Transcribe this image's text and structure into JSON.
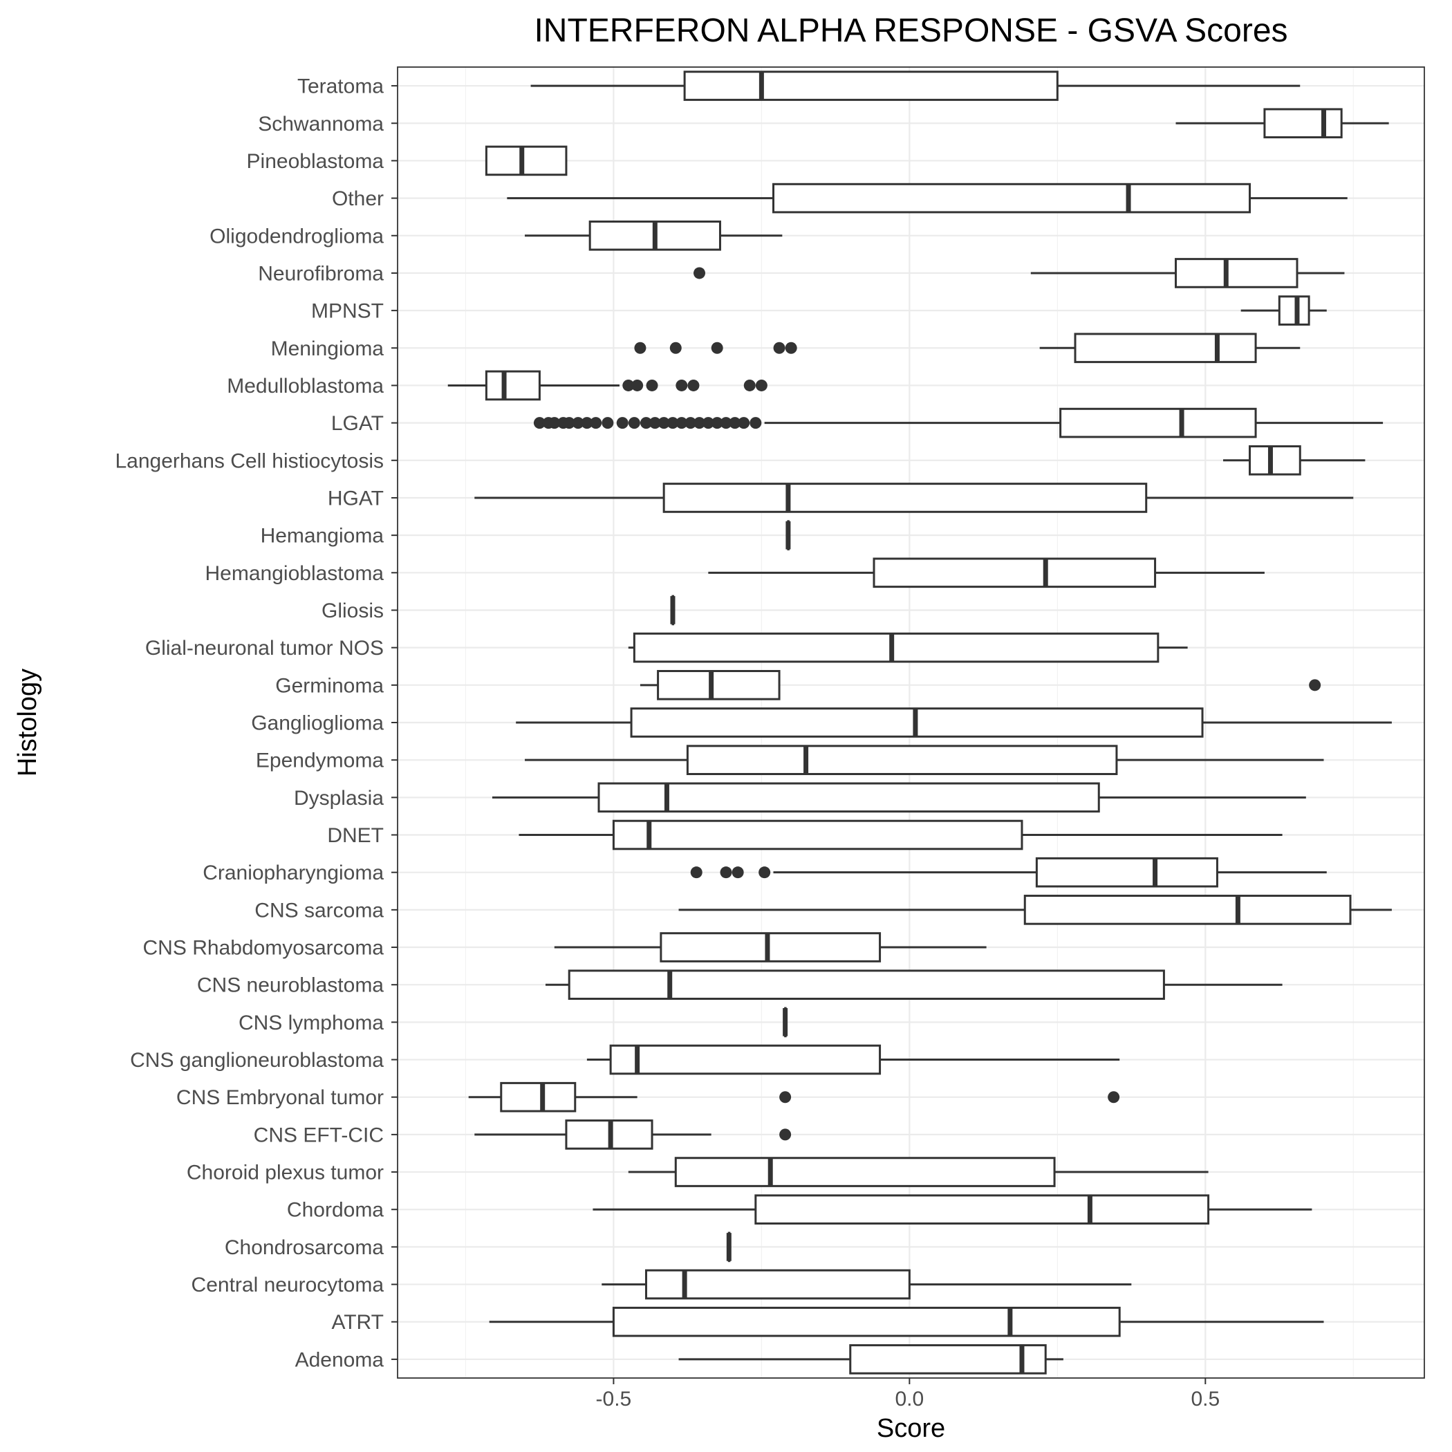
{
  "chart_data": {
    "type": "boxplot",
    "orientation": "horizontal",
    "title": "INTERFERON ALPHA RESPONSE - GSVA Scores",
    "xlabel": "Score",
    "ylabel": "Histology",
    "xlim": [
      -0.865,
      0.87
    ],
    "x_ticks": [
      -0.5,
      0.0,
      0.5
    ],
    "x_tick_labels": [
      "-0.5",
      "0.0",
      "0.5"
    ],
    "grid": true,
    "categories": [
      "Teratoma",
      "Schwannoma",
      "Pineoblastoma",
      "Other",
      "Oligodendroglioma",
      "Neurofibroma",
      "MPNST",
      "Meningioma",
      "Medulloblastoma",
      "LGAT",
      "Langerhans Cell histiocytosis",
      "HGAT",
      "Hemangioma",
      "Hemangioblastoma",
      "Gliosis",
      "Glial-neuronal tumor NOS",
      "Germinoma",
      "Ganglioglioma",
      "Ependymoma",
      "Dysplasia",
      "DNET",
      "Craniopharyngioma",
      "CNS sarcoma",
      "CNS Rhabdomyosarcoma",
      "CNS neuroblastoma",
      "CNS lymphoma",
      "CNS ganglioneuroblastoma",
      "CNS Embryonal tumor",
      "CNS EFT-CIC",
      "Choroid plexus tumor",
      "Chordoma",
      "Chondrosarcoma",
      "Central neurocytoma",
      "ATRT",
      "Adenoma"
    ],
    "boxes": [
      {
        "category": "Teratoma",
        "whisker_low": -0.64,
        "q1": -0.38,
        "median": -0.25,
        "q3": 0.25,
        "whisker_high": 0.66,
        "outliers": []
      },
      {
        "category": "Schwannoma",
        "whisker_low": 0.45,
        "q1": 0.6,
        "median": 0.7,
        "q3": 0.73,
        "whisker_high": 0.81,
        "outliers": []
      },
      {
        "category": "Pineoblastoma",
        "whisker_low": -0.715,
        "q1": -0.715,
        "median": -0.655,
        "q3": -0.58,
        "whisker_high": -0.58,
        "outliers": []
      },
      {
        "category": "Other",
        "whisker_low": -0.68,
        "q1": -0.23,
        "median": 0.37,
        "q3": 0.575,
        "whisker_high": 0.74,
        "outliers": []
      },
      {
        "category": "Oligodendroglioma",
        "whisker_low": -0.65,
        "q1": -0.54,
        "median": -0.43,
        "q3": -0.32,
        "whisker_high": -0.215,
        "outliers": []
      },
      {
        "category": "Neurofibroma",
        "whisker_low": 0.205,
        "q1": 0.45,
        "median": 0.535,
        "q3": 0.655,
        "whisker_high": 0.735,
        "outliers": [
          -0.355
        ]
      },
      {
        "category": "MPNST",
        "whisker_low": 0.56,
        "q1": 0.625,
        "median": 0.655,
        "q3": 0.675,
        "whisker_high": 0.705,
        "outliers": []
      },
      {
        "category": "Meningioma",
        "whisker_low": 0.22,
        "q1": 0.28,
        "median": 0.52,
        "q3": 0.585,
        "whisker_high": 0.66,
        "outliers": [
          -0.455,
          -0.395,
          -0.325,
          -0.22,
          -0.2
        ]
      },
      {
        "category": "Medulloblastoma",
        "whisker_low": -0.78,
        "q1": -0.715,
        "median": -0.685,
        "q3": -0.625,
        "whisker_high": -0.49,
        "outliers": [
          -0.475,
          -0.46,
          -0.435,
          -0.385,
          -0.365,
          -0.27,
          -0.25
        ]
      },
      {
        "category": "LGAT",
        "whisker_low": -0.245,
        "q1": 0.255,
        "median": 0.46,
        "q3": 0.585,
        "whisker_high": 0.8,
        "outliers": [
          -0.625,
          -0.61,
          -0.6,
          -0.585,
          -0.575,
          -0.56,
          -0.545,
          -0.53,
          -0.51,
          -0.485,
          -0.465,
          -0.445,
          -0.43,
          -0.415,
          -0.4,
          -0.385,
          -0.37,
          -0.355,
          -0.34,
          -0.325,
          -0.31,
          -0.295,
          -0.28,
          -0.26
        ]
      },
      {
        "category": "Langerhans Cell histiocytosis",
        "whisker_low": 0.53,
        "q1": 0.575,
        "median": 0.61,
        "q3": 0.66,
        "whisker_high": 0.77,
        "outliers": []
      },
      {
        "category": "HGAT",
        "whisker_low": -0.735,
        "q1": -0.415,
        "median": -0.205,
        "q3": 0.4,
        "whisker_high": 0.75,
        "outliers": []
      },
      {
        "category": "Hemangioma",
        "whisker_low": -0.205,
        "q1": -0.205,
        "median": -0.205,
        "q3": -0.205,
        "whisker_high": -0.205,
        "outliers": []
      },
      {
        "category": "Hemangioblastoma",
        "whisker_low": -0.34,
        "q1": -0.06,
        "median": 0.23,
        "q3": 0.415,
        "whisker_high": 0.6,
        "outliers": []
      },
      {
        "category": "Gliosis",
        "whisker_low": -0.4,
        "q1": -0.4,
        "median": -0.4,
        "q3": -0.4,
        "whisker_high": -0.4,
        "outliers": []
      },
      {
        "category": "Glial-neuronal tumor NOS",
        "whisker_low": -0.475,
        "q1": -0.465,
        "median": -0.03,
        "q3": 0.42,
        "whisker_high": 0.47,
        "outliers": []
      },
      {
        "category": "Germinoma",
        "whisker_low": -0.455,
        "q1": -0.425,
        "median": -0.335,
        "q3": -0.22,
        "whisker_high": -0.22,
        "outliers": [
          0.685
        ]
      },
      {
        "category": "Ganglioglioma",
        "whisker_low": -0.665,
        "q1": -0.47,
        "median": 0.01,
        "q3": 0.495,
        "whisker_high": 0.815,
        "outliers": []
      },
      {
        "category": "Ependymoma",
        "whisker_low": -0.65,
        "q1": -0.375,
        "median": -0.175,
        "q3": 0.35,
        "whisker_high": 0.7,
        "outliers": []
      },
      {
        "category": "Dysplasia",
        "whisker_low": -0.705,
        "q1": -0.525,
        "median": -0.41,
        "q3": 0.32,
        "whisker_high": 0.67,
        "outliers": []
      },
      {
        "category": "DNET",
        "whisker_low": -0.66,
        "q1": -0.5,
        "median": -0.44,
        "q3": 0.19,
        "whisker_high": 0.63,
        "outliers": []
      },
      {
        "category": "Craniopharyngioma",
        "whisker_low": -0.23,
        "q1": 0.215,
        "median": 0.415,
        "q3": 0.52,
        "whisker_high": 0.705,
        "outliers": [
          -0.36,
          -0.31,
          -0.29,
          -0.245
        ]
      },
      {
        "category": "CNS sarcoma",
        "whisker_low": -0.39,
        "q1": 0.195,
        "median": 0.555,
        "q3": 0.745,
        "whisker_high": 0.815,
        "outliers": []
      },
      {
        "category": "CNS Rhabdomyosarcoma",
        "whisker_low": -0.6,
        "q1": -0.42,
        "median": -0.24,
        "q3": -0.05,
        "whisker_high": 0.13,
        "outliers": []
      },
      {
        "category": "CNS neuroblastoma",
        "whisker_low": -0.615,
        "q1": -0.575,
        "median": -0.405,
        "q3": 0.43,
        "whisker_high": 0.63,
        "outliers": []
      },
      {
        "category": "CNS lymphoma",
        "whisker_low": -0.21,
        "q1": -0.21,
        "median": -0.21,
        "q3": -0.21,
        "whisker_high": -0.21,
        "outliers": []
      },
      {
        "category": "CNS ganglioneuroblastoma",
        "whisker_low": -0.545,
        "q1": -0.505,
        "median": -0.46,
        "q3": -0.05,
        "whisker_high": 0.355,
        "outliers": []
      },
      {
        "category": "CNS Embryonal tumor",
        "whisker_low": -0.745,
        "q1": -0.69,
        "median": -0.62,
        "q3": -0.565,
        "whisker_high": -0.46,
        "outliers": [
          -0.21,
          0.345
        ]
      },
      {
        "category": "CNS EFT-CIC",
        "whisker_low": -0.735,
        "q1": -0.58,
        "median": -0.505,
        "q3": -0.435,
        "whisker_high": -0.335,
        "outliers": [
          -0.21
        ]
      },
      {
        "category": "Choroid plexus tumor",
        "whisker_low": -0.475,
        "q1": -0.395,
        "median": -0.235,
        "q3": 0.245,
        "whisker_high": 0.505,
        "outliers": []
      },
      {
        "category": "Chordoma",
        "whisker_low": -0.535,
        "q1": -0.26,
        "median": 0.305,
        "q3": 0.505,
        "whisker_high": 0.68,
        "outliers": []
      },
      {
        "category": "Chondrosarcoma",
        "whisker_low": -0.305,
        "q1": -0.305,
        "median": -0.305,
        "q3": -0.305,
        "whisker_high": -0.305,
        "outliers": []
      },
      {
        "category": "Central neurocytoma",
        "whisker_low": -0.52,
        "q1": -0.445,
        "median": -0.38,
        "q3": 0.0,
        "whisker_high": 0.375,
        "outliers": []
      },
      {
        "category": "ATRT",
        "whisker_low": -0.71,
        "q1": -0.5,
        "median": 0.17,
        "q3": 0.355,
        "whisker_high": 0.7,
        "outliers": []
      },
      {
        "category": "Adenoma",
        "whisker_low": -0.39,
        "q1": -0.1,
        "median": 0.19,
        "q3": 0.23,
        "whisker_high": 0.26,
        "outliers": []
      }
    ],
    "colors": {
      "box_fill": "#ffffff",
      "box_stroke": "#333333",
      "outlier": "#333333",
      "grid": "#ebebeb",
      "background": "#ffffff"
    }
  }
}
